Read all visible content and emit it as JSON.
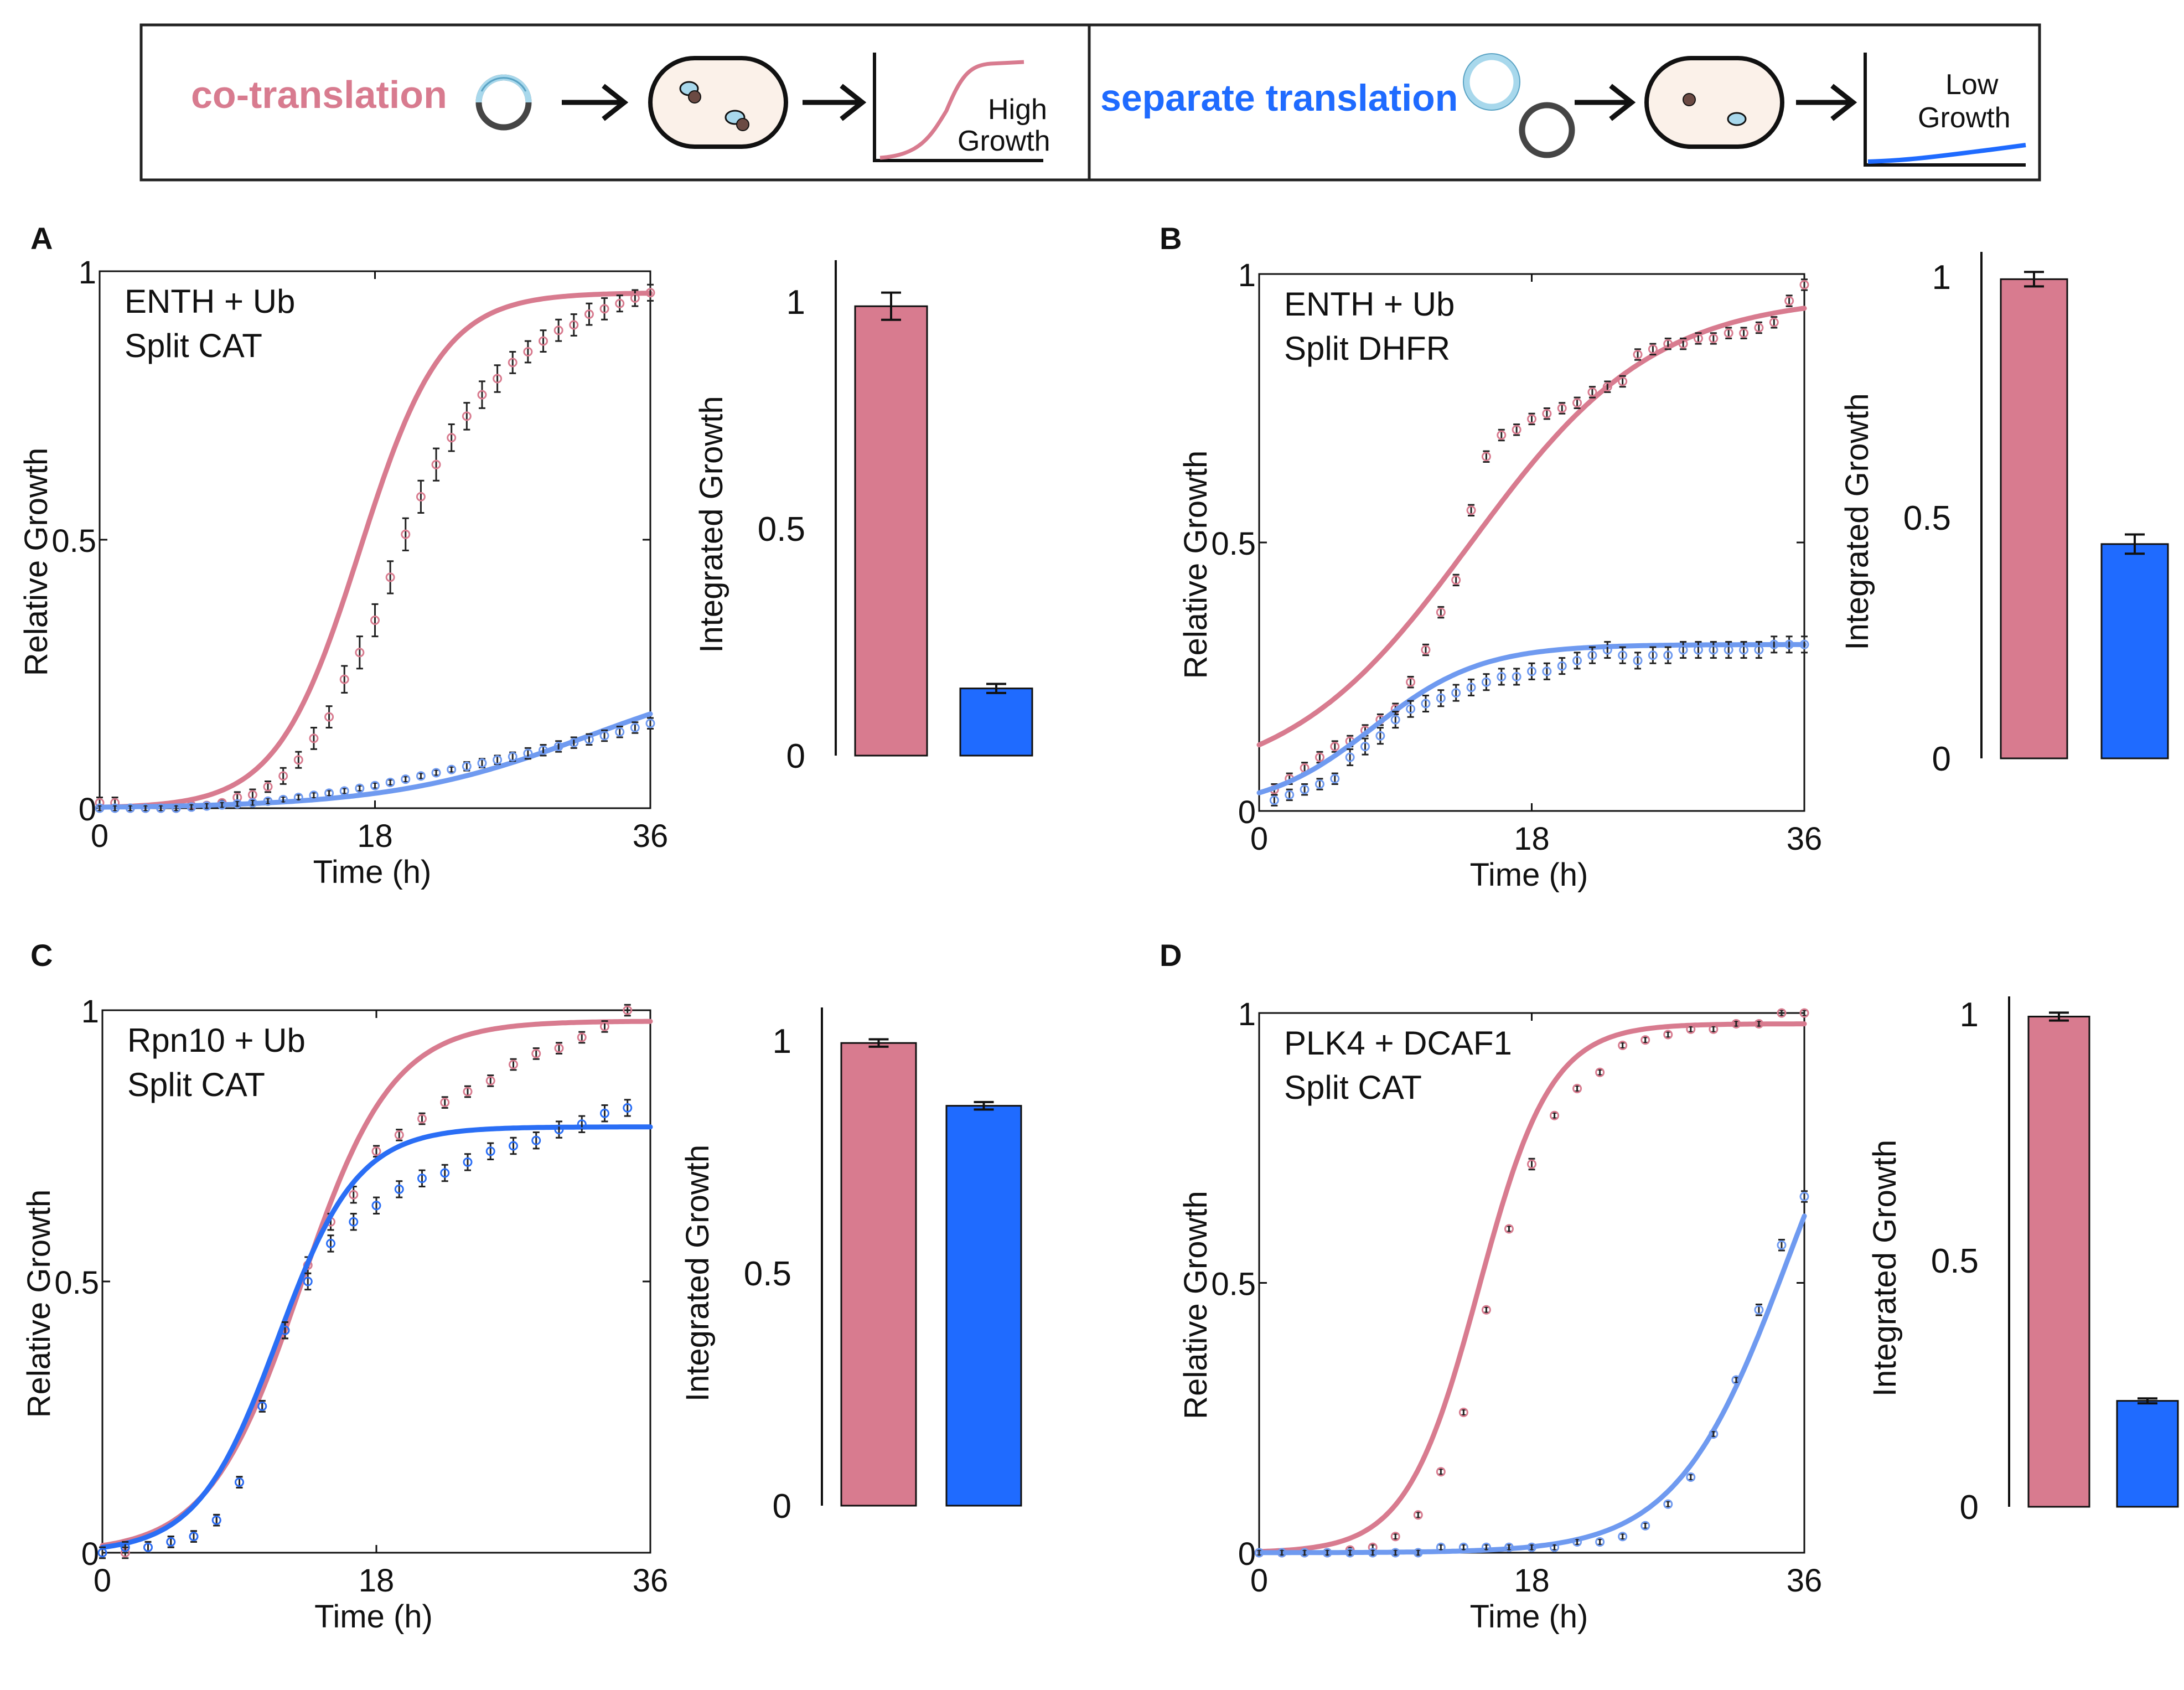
{
  "schematic": {
    "co_label": "co-translation",
    "sep_label": "separate translation",
    "high_growth": [
      "High",
      "Growth"
    ],
    "low_growth": [
      "Low",
      "Growth"
    ],
    "colors": {
      "co": "#d87b8f",
      "sep": "#1f6bff",
      "cell": "#fbf1e9",
      "plasmid_light": "#a8d8ec",
      "plasmid_dark": "#454545"
    }
  },
  "colors": {
    "co": "#d87b8f",
    "co_point": "#d87b8f",
    "sep": "#2a6ef5",
    "sep_light": "#6f9af0"
  },
  "chart_data": [
    {
      "type": "line",
      "panel": "A",
      "annotation": [
        "ENTH + Ub",
        "Split CAT"
      ],
      "xlabel": "Time (h)",
      "ylabel": "Relative Growth",
      "xlim": [
        0,
        36
      ],
      "ylim": [
        0,
        1
      ],
      "xticks": [
        "0",
        "18",
        "36"
      ],
      "yticks": [
        "0",
        "0.5",
        "1"
      ],
      "series": [
        {
          "name": "co-translation",
          "x": [
            0,
            1,
            2,
            3,
            4,
            5,
            6,
            7,
            8,
            9,
            10,
            11,
            12,
            13,
            14,
            15,
            16,
            17,
            18,
            19,
            20,
            21,
            22,
            23,
            24,
            25,
            26,
            27,
            28,
            29,
            30,
            31,
            32,
            33,
            34,
            35,
            36
          ],
          "y": [
            0.01,
            0.01,
            0.0,
            0.0,
            0.0,
            0.0,
            0.005,
            0.005,
            0.01,
            0.02,
            0.025,
            0.04,
            0.06,
            0.09,
            0.13,
            0.17,
            0.24,
            0.29,
            0.35,
            0.43,
            0.51,
            0.58,
            0.64,
            0.69,
            0.73,
            0.77,
            0.8,
            0.83,
            0.85,
            0.87,
            0.89,
            0.9,
            0.92,
            0.93,
            0.94,
            0.95,
            0.96
          ],
          "err": [
            0.01,
            0.01,
            0.005,
            0.005,
            0.005,
            0.005,
            0.005,
            0.005,
            0.005,
            0.01,
            0.01,
            0.01,
            0.015,
            0.015,
            0.02,
            0.02,
            0.025,
            0.03,
            0.03,
            0.03,
            0.03,
            0.03,
            0.03,
            0.025,
            0.025,
            0.025,
            0.025,
            0.02,
            0.02,
            0.02,
            0.02,
            0.02,
            0.02,
            0.02,
            0.015,
            0.015,
            0.015
          ],
          "fit_k": 0.37,
          "fit_x0": 17,
          "fit_top": 0.96,
          "fit_base": 0.0
        },
        {
          "name": "separate translation",
          "x": [
            0,
            1,
            2,
            3,
            4,
            5,
            6,
            7,
            8,
            9,
            10,
            11,
            12,
            13,
            14,
            15,
            16,
            17,
            18,
            19,
            20,
            21,
            22,
            23,
            24,
            25,
            26,
            27,
            28,
            29,
            30,
            31,
            32,
            33,
            34,
            35,
            36
          ],
          "y": [
            0.0,
            0.0,
            0.0,
            0.0,
            0.0,
            0.0,
            0.002,
            0.004,
            0.006,
            0.008,
            0.01,
            0.013,
            0.016,
            0.02,
            0.024,
            0.028,
            0.032,
            0.037,
            0.042,
            0.048,
            0.054,
            0.06,
            0.066,
            0.072,
            0.078,
            0.084,
            0.09,
            0.096,
            0.102,
            0.108,
            0.115,
            0.122,
            0.128,
            0.135,
            0.142,
            0.15,
            0.158
          ],
          "err": [
            0.005,
            0.005,
            0.005,
            0.005,
            0.005,
            0.005,
            0.005,
            0.005,
            0.005,
            0.005,
            0.005,
            0.005,
            0.005,
            0.005,
            0.005,
            0.005,
            0.005,
            0.005,
            0.005,
            0.005,
            0.005,
            0.005,
            0.005,
            0.005,
            0.008,
            0.008,
            0.008,
            0.008,
            0.01,
            0.01,
            0.01,
            0.01,
            0.01,
            0.01,
            0.01,
            0.01,
            0.01
          ],
          "fit_k": 0.155,
          "fit_x0": 32,
          "fit_top": 0.27,
          "fit_base": 0.0
        }
      ],
      "bars": {
        "categories": [
          "co-translation",
          "separate translation"
        ],
        "values": [
          0.99,
          0.148
        ],
        "err": [
          0.03,
          0.01
        ],
        "ylabel": "Integrated Growth",
        "ylim": [
          0,
          1
        ],
        "yticks": [
          "0",
          "0.5",
          "1"
        ]
      }
    },
    {
      "type": "line",
      "panel": "B",
      "annotation": [
        "ENTH + Ub",
        "Split DHFR"
      ],
      "xlabel": "Time (h)",
      "ylabel": "Relative Growth",
      "xlim": [
        0,
        36
      ],
      "ylim": [
        0,
        1
      ],
      "xticks": [
        "0",
        "18",
        "36"
      ],
      "yticks": [
        "0",
        "0.5",
        "1"
      ],
      "series": [
        {
          "name": "co-translation",
          "x": [
            1,
            2,
            3,
            4,
            5,
            6,
            7,
            8,
            9,
            10,
            11,
            12,
            13,
            14,
            15,
            16,
            17,
            18,
            19,
            20,
            21,
            22,
            23,
            24,
            25,
            26,
            27,
            28,
            29,
            30,
            31,
            32,
            33,
            34,
            35,
            36
          ],
          "y": [
            0.04,
            0.06,
            0.08,
            0.1,
            0.12,
            0.13,
            0.15,
            0.17,
            0.19,
            0.24,
            0.3,
            0.37,
            0.43,
            0.56,
            0.66,
            0.7,
            0.71,
            0.73,
            0.74,
            0.75,
            0.76,
            0.78,
            0.79,
            0.8,
            0.85,
            0.86,
            0.87,
            0.87,
            0.88,
            0.88,
            0.89,
            0.89,
            0.9,
            0.91,
            0.95,
            0.98
          ],
          "err": [
            0.01,
            0.01,
            0.01,
            0.01,
            0.01,
            0.01,
            0.01,
            0.01,
            0.01,
            0.01,
            0.01,
            0.01,
            0.01,
            0.01,
            0.01,
            0.01,
            0.01,
            0.01,
            0.01,
            0.01,
            0.01,
            0.01,
            0.01,
            0.01,
            0.01,
            0.01,
            0.01,
            0.01,
            0.01,
            0.01,
            0.01,
            0.01,
            0.01,
            0.01,
            0.01,
            0.01
          ],
          "fit_k": 0.165,
          "fit_x0": 14,
          "fit_top": 0.96,
          "fit_base": 0.04
        },
        {
          "name": "separate translation",
          "x": [
            1,
            2,
            3,
            4,
            5,
            6,
            7,
            8,
            9,
            10,
            11,
            12,
            13,
            14,
            15,
            16,
            17,
            18,
            19,
            20,
            21,
            22,
            23,
            24,
            25,
            26,
            27,
            28,
            29,
            30,
            31,
            32,
            33,
            34,
            35,
            36
          ],
          "y": [
            0.02,
            0.03,
            0.04,
            0.05,
            0.06,
            0.1,
            0.12,
            0.14,
            0.17,
            0.19,
            0.2,
            0.21,
            0.22,
            0.23,
            0.24,
            0.25,
            0.25,
            0.26,
            0.26,
            0.27,
            0.28,
            0.29,
            0.3,
            0.29,
            0.28,
            0.29,
            0.29,
            0.3,
            0.3,
            0.3,
            0.3,
            0.3,
            0.3,
            0.31,
            0.31,
            0.31
          ],
          "err": [
            0.01,
            0.01,
            0.01,
            0.01,
            0.01,
            0.015,
            0.015,
            0.015,
            0.015,
            0.015,
            0.015,
            0.015,
            0.015,
            0.015,
            0.015,
            0.015,
            0.015,
            0.015,
            0.015,
            0.015,
            0.015,
            0.015,
            0.015,
            0.015,
            0.015,
            0.015,
            0.015,
            0.015,
            0.015,
            0.015,
            0.015,
            0.015,
            0.015,
            0.015,
            0.015,
            0.015
          ],
          "fit_k": 0.28,
          "fit_x0": 7.5,
          "fit_top": 0.31,
          "fit_base": 0.0
        }
      ],
      "bars": {
        "categories": [
          "co-translation",
          "separate translation"
        ],
        "values": [
          0.995,
          0.445
        ],
        "err": [
          0.015,
          0.02
        ],
        "ylabel": "Integrated Growth",
        "ylim": [
          0,
          1
        ],
        "yticks": [
          "0",
          "0.5",
          "1"
        ]
      }
    },
    {
      "type": "line",
      "panel": "C",
      "annotation": [
        "Rpn10 + Ub",
        "Split CAT"
      ],
      "xlabel": "Time (h)",
      "ylabel": "Relative Growth",
      "xlim": [
        0,
        36
      ],
      "ylim": [
        0,
        1
      ],
      "xticks": [
        "0",
        "18",
        "36"
      ],
      "yticks": [
        "0",
        "0.5",
        "1"
      ],
      "series": [
        {
          "name": "co-translation",
          "x": [
            0,
            1.5,
            3,
            4.5,
            6,
            7.5,
            9,
            10.5,
            12,
            13.5,
            15,
            16.5,
            18,
            19.5,
            21,
            22.5,
            24,
            25.5,
            27,
            28.5,
            30,
            31.5,
            33,
            34.5
          ],
          "y": [
            0.0,
            0.0,
            0.01,
            0.02,
            0.03,
            0.06,
            0.13,
            0.27,
            0.41,
            0.53,
            0.61,
            0.66,
            0.74,
            0.77,
            0.8,
            0.83,
            0.85,
            0.87,
            0.9,
            0.92,
            0.93,
            0.95,
            0.97,
            1.0
          ],
          "err": [
            0.01,
            0.01,
            0.01,
            0.01,
            0.01,
            0.01,
            0.01,
            0.01,
            0.015,
            0.015,
            0.015,
            0.015,
            0.01,
            0.01,
            0.01,
            0.01,
            0.01,
            0.01,
            0.01,
            0.01,
            0.01,
            0.01,
            0.01,
            0.01
          ],
          "fit_k": 0.33,
          "fit_x0": 13,
          "fit_top": 0.98,
          "fit_base": 0.0
        },
        {
          "name": "separate translation",
          "x": [
            0,
            1.5,
            3,
            4.5,
            6,
            7.5,
            9,
            10.5,
            12,
            13.5,
            15,
            16.5,
            18,
            19.5,
            21,
            22.5,
            24,
            25.5,
            27,
            28.5,
            30,
            31.5,
            33,
            34.5
          ],
          "y": [
            0.0,
            0.01,
            0.01,
            0.02,
            0.03,
            0.06,
            0.13,
            0.27,
            0.41,
            0.5,
            0.57,
            0.61,
            0.64,
            0.67,
            0.69,
            0.7,
            0.72,
            0.74,
            0.75,
            0.76,
            0.78,
            0.79,
            0.81,
            0.82
          ],
          "err": [
            0.01,
            0.01,
            0.01,
            0.01,
            0.01,
            0.01,
            0.01,
            0.01,
            0.015,
            0.015,
            0.015,
            0.015,
            0.015,
            0.015,
            0.015,
            0.015,
            0.015,
            0.015,
            0.015,
            0.015,
            0.015,
            0.015,
            0.015,
            0.015
          ],
          "fit_k": 0.38,
          "fit_x0": 11.5,
          "fit_top": 0.785,
          "fit_base": 0.0
        }
      ],
      "bars": {
        "categories": [
          "co-translation",
          "separate translation"
        ],
        "values": [
          0.995,
          0.86
        ],
        "err": [
          0.008,
          0.008
        ],
        "ylabel": "Integrated Growth",
        "ylim": [
          0,
          1
        ],
        "yticks": [
          "0",
          "0.5",
          "1"
        ]
      }
    },
    {
      "type": "line",
      "panel": "D",
      "annotation": [
        "PLK4 + DCAF1",
        "Split CAT"
      ],
      "xlabel": "Time (h)",
      "ylabel": "Relative Growth",
      "xlim": [
        0,
        36
      ],
      "ylim": [
        0,
        1
      ],
      "xticks": [
        "0",
        "18",
        "36"
      ],
      "yticks": [
        "0",
        "0.5",
        "1"
      ],
      "series": [
        {
          "name": "co-translation",
          "x": [
            0,
            1.5,
            3,
            4.5,
            6,
            7.5,
            9,
            10.5,
            12,
            13.5,
            15,
            16.5,
            18,
            19.5,
            21,
            22.5,
            24,
            25.5,
            27,
            28.5,
            30,
            31.5,
            33,
            34.5,
            36
          ],
          "y": [
            0.0,
            0.0,
            0.0,
            0.0,
            0.005,
            0.01,
            0.03,
            0.07,
            0.15,
            0.26,
            0.45,
            0.6,
            0.72,
            0.81,
            0.86,
            0.89,
            0.94,
            0.95,
            0.96,
            0.97,
            0.97,
            0.98,
            0.98,
            1.0,
            1.0
          ],
          "err": [
            0.005,
            0.005,
            0.005,
            0.005,
            0.005,
            0.005,
            0.005,
            0.005,
            0.005,
            0.005,
            0.005,
            0.005,
            0.01,
            0.005,
            0.005,
            0.005,
            0.005,
            0.005,
            0.005,
            0.005,
            0.005,
            0.005,
            0.005,
            0.005,
            0.005
          ],
          "fit_k": 0.42,
          "fit_x0": 14.5,
          "fit_top": 0.98,
          "fit_base": 0.0
        },
        {
          "name": "separate translation",
          "x": [
            0,
            1.5,
            3,
            4.5,
            6,
            7.5,
            9,
            10.5,
            12,
            13.5,
            15,
            16.5,
            18,
            19.5,
            21,
            22.5,
            24,
            25.5,
            27,
            28.5,
            30,
            31.5,
            33,
            34.5,
            36
          ],
          "y": [
            0.0,
            0.0,
            0.0,
            0.0,
            0.0,
            0.0,
            0.0,
            0.0,
            0.01,
            0.01,
            0.01,
            0.01,
            0.01,
            0.01,
            0.02,
            0.02,
            0.03,
            0.05,
            0.09,
            0.14,
            0.22,
            0.32,
            0.45,
            0.57,
            0.66
          ],
          "err": [
            0.005,
            0.005,
            0.005,
            0.005,
            0.005,
            0.005,
            0.005,
            0.005,
            0.005,
            0.005,
            0.005,
            0.005,
            0.005,
            0.005,
            0.005,
            0.005,
            0.005,
            0.005,
            0.005,
            0.005,
            0.005,
            0.005,
            0.01,
            0.01,
            0.01
          ],
          "fit_k": 0.27,
          "fit_x0": 35,
          "fit_top": 1.1,
          "fit_base": 0.0
        }
      ],
      "bars": {
        "categories": [
          "co-translation",
          "separate translation"
        ],
        "values": [
          0.995,
          0.215
        ],
        "err": [
          0.008,
          0.005
        ],
        "ylabel": "Integrated Growth",
        "ylim": [
          0,
          1
        ],
        "yticks": [
          "0",
          "0.5",
          "1"
        ]
      }
    }
  ]
}
